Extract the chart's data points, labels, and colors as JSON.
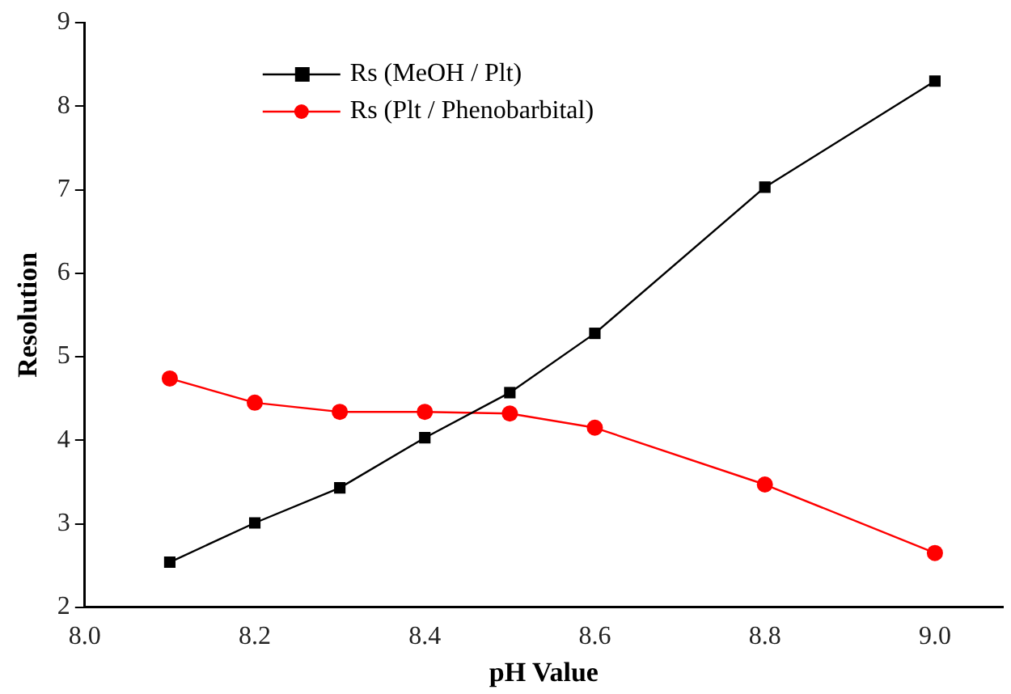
{
  "chart_data": {
    "type": "line",
    "xlabel": "pH Value",
    "ylabel": "Resolution",
    "x": [
      8.1,
      8.2,
      8.3,
      8.4,
      8.5,
      8.6,
      8.8,
      9.0
    ],
    "series": [
      {
        "name": "Rs (MeOH / Plt)",
        "color": "#000000",
        "marker": "square",
        "values": [
          2.54,
          3.01,
          3.43,
          4.03,
          4.57,
          5.28,
          7.03,
          8.3
        ]
      },
      {
        "name": "Rs (Plt / Phenobarbital)",
        "color": "#ff0000",
        "marker": "circle",
        "values": [
          4.74,
          4.45,
          4.34,
          4.34,
          4.32,
          4.15,
          3.47,
          2.65
        ]
      }
    ],
    "xlim": [
      8.0,
      9.08
    ],
    "xticks": [
      {
        "value": 8.0,
        "label": "8.0"
      },
      {
        "value": 8.2,
        "label": "8.2"
      },
      {
        "value": 8.4,
        "label": "8.4"
      },
      {
        "value": 8.6,
        "label": "8.6"
      },
      {
        "value": 8.8,
        "label": "8.8"
      },
      {
        "value": 9.0,
        "label": "9.0"
      }
    ],
    "ylim": [
      2,
      9
    ],
    "yticks": [
      2,
      3,
      4,
      5,
      6,
      7,
      8,
      9
    ],
    "grid": false,
    "legend": "top left",
    "line_style": "solid"
  }
}
